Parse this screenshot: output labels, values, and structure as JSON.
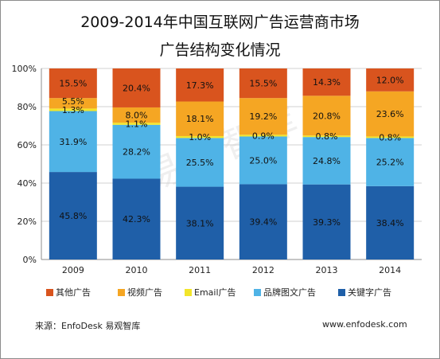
{
  "chart_data": {
    "type": "bar",
    "stacked": true,
    "title_line1": "2009-2014年中国互联网广告运营商市场",
    "title_line2": "广告结构变化情况",
    "categories": [
      "2009",
      "2010",
      "2011",
      "2012",
      "2013",
      "2014"
    ],
    "y_ticks": [
      "0%",
      "20%",
      "40%",
      "60%",
      "80%",
      "100%"
    ],
    "ylim": [
      0,
      100
    ],
    "series": [
      {
        "name": "关键字广告",
        "color": "#1f5fa8",
        "values": [
          45.8,
          42.3,
          38.1,
          39.4,
          39.3,
          38.4
        ]
      },
      {
        "name": "品牌图文广告",
        "color": "#4fb3e6",
        "values": [
          31.9,
          28.2,
          25.5,
          25.0,
          24.8,
          25.2
        ]
      },
      {
        "name": "Email广告",
        "color": "#f2e52a",
        "values": [
          1.3,
          1.1,
          1.0,
          0.9,
          0.8,
          0.8
        ]
      },
      {
        "name": "视频广告",
        "color": "#f5a623",
        "values": [
          5.5,
          8.0,
          18.1,
          19.2,
          20.8,
          23.6
        ]
      },
      {
        "name": "其他广告",
        "color": "#d9541e",
        "values": [
          15.5,
          20.4,
          17.3,
          15.5,
          14.3,
          12.0
        ]
      }
    ],
    "legend_order": [
      "其他广告",
      "视频广告",
      "Email广告",
      "品牌图文广告",
      "关键字广告"
    ],
    "legend_position": "bottom",
    "grid": true
  },
  "watermark": "易观智库",
  "footer": {
    "source": "来源：EnfoDesk 易观智库",
    "url": "www.enfodesk.com"
  }
}
